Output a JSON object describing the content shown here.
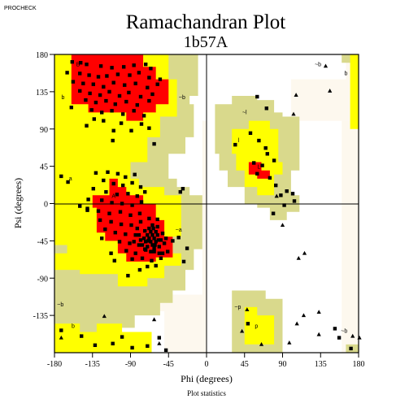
{
  "header": {
    "program": "PROCHECK",
    "title": "Ramachandran Plot",
    "subtitle": "1b57A"
  },
  "footer": {
    "caption": "Plot statistics"
  },
  "colors": {
    "core": "#ff0000",
    "allowed": "#ffff00",
    "generous": "#d9d98c",
    "disallowed_tint": "#fdf8ee",
    "background": "#ffffff",
    "residue": "#000000"
  },
  "region_labels": [
    {
      "text": "B",
      "phi": -152,
      "psi": 166
    },
    {
      "text": "b",
      "phi": -170,
      "psi": 126
    },
    {
      "text": "~b",
      "phi": -29,
      "psi": 126
    },
    {
      "text": "~b",
      "phi": 132,
      "psi": 166
    },
    {
      "text": "b",
      "phi": 165,
      "psi": 155
    },
    {
      "text": "~l",
      "phi": 45,
      "psi": 108
    },
    {
      "text": "l",
      "phi": 38,
      "psi": 74
    },
    {
      "text": "L",
      "phi": 62,
      "psi": 42
    },
    {
      "text": "a",
      "phi": -161,
      "psi": 28
    },
    {
      "text": "A",
      "phi": -110,
      "psi": 7
    },
    {
      "text": "~a",
      "phi": -33,
      "psi": -34
    },
    {
      "text": "~b",
      "phi": -173,
      "psi": -124
    },
    {
      "text": "b",
      "phi": -158,
      "psi": -150
    },
    {
      "text": "~p",
      "phi": 37,
      "psi": -127
    },
    {
      "text": "p",
      "phi": 59,
      "psi": -150
    },
    {
      "text": "~b",
      "phi": 163,
      "psi": -156
    }
  ],
  "chart_data": {
    "type": "scatter",
    "title": "Ramachandran Plot",
    "subtitle": "1b57A",
    "xlabel": "Phi (degrees)",
    "ylabel": "Psi (degrees)",
    "xlim": [
      -180,
      180
    ],
    "ylim": [
      -180,
      180
    ],
    "x_ticks": [
      -180,
      -135,
      -90,
      -45,
      0,
      45,
      90,
      135,
      180
    ],
    "y_ticks": [
      180,
      135,
      90,
      45,
      0,
      -45,
      -90,
      -135
    ],
    "grid": false,
    "series": [
      {
        "marker": "square",
        "points": [
          [
            -159,
            171
          ],
          [
            -149,
            170
          ],
          [
            -142,
            168
          ],
          [
            -125,
            166
          ],
          [
            -112,
            164
          ],
          [
            -98,
            165
          ],
          [
            -86,
            167
          ],
          [
            -72,
            168
          ],
          [
            -66,
            163
          ],
          [
            -165,
            158
          ],
          [
            -150,
            157
          ],
          [
            -139,
            155
          ],
          [
            -128,
            153
          ],
          [
            -118,
            154
          ],
          [
            -105,
            156
          ],
          [
            -91,
            155
          ],
          [
            -80,
            158
          ],
          [
            -68,
            152
          ],
          [
            -55,
            150
          ],
          [
            -158,
            147
          ],
          [
            -146,
            145
          ],
          [
            -134,
            144
          ],
          [
            -122,
            141
          ],
          [
            -110,
            146
          ],
          [
            -97,
            143
          ],
          [
            -84,
            145
          ],
          [
            -70,
            140
          ],
          [
            -58,
            144
          ],
          [
            -150,
            136
          ],
          [
            -138,
            133
          ],
          [
            -126,
            131
          ],
          [
            -115,
            135
          ],
          [
            -103,
            130
          ],
          [
            -92,
            134
          ],
          [
            -78,
            129
          ],
          [
            -64,
            132
          ],
          [
            -143,
            125
          ],
          [
            -131,
            122
          ],
          [
            -119,
            124
          ],
          [
            -108,
            120
          ],
          [
            -95,
            123
          ],
          [
            -82,
            119
          ],
          [
            -68,
            124
          ],
          [
            -136,
            113
          ],
          [
            -124,
            110
          ],
          [
            -112,
            112
          ],
          [
            -99,
            108
          ],
          [
            -86,
            112
          ],
          [
            -74,
            106
          ],
          [
            -160,
            116
          ],
          [
            -122,
            100
          ],
          [
            -133,
            102
          ],
          [
            -101,
            97
          ],
          [
            -89,
            88
          ],
          [
            -77,
            96
          ],
          [
            -110,
            88
          ],
          [
            -62,
            72
          ],
          [
            -68,
            91
          ],
          [
            -111,
            76
          ],
          [
            -142,
            94
          ],
          [
            -131,
            37
          ],
          [
            -117,
            38
          ],
          [
            -105,
            36
          ],
          [
            -96,
            32
          ],
          [
            -85,
            35
          ],
          [
            -122,
            28
          ],
          [
            -110,
            24
          ],
          [
            -99,
            22
          ],
          [
            -88,
            25
          ],
          [
            -78,
            20
          ],
          [
            -134,
            18
          ],
          [
            -119,
            14
          ],
          [
            -106,
            11
          ],
          [
            -93,
            12
          ],
          [
            -82,
            9
          ],
          [
            -73,
            14
          ],
          [
            -164,
            26
          ],
          [
            -172,
            33
          ],
          [
            -140,
            5
          ],
          [
            -124,
            4
          ],
          [
            -112,
            1
          ],
          [
            -100,
            0
          ],
          [
            -88,
            -2
          ],
          [
            -77,
            2
          ],
          [
            -141,
            -6
          ],
          [
            -128,
            -9
          ],
          [
            -115,
            -12
          ],
          [
            -102,
            -10
          ],
          [
            -90,
            -14
          ],
          [
            -79,
            -12
          ],
          [
            -126,
            -20
          ],
          [
            -113,
            -22
          ],
          [
            -101,
            -25
          ],
          [
            -89,
            -26
          ],
          [
            -78,
            -22
          ],
          [
            -68,
            -18
          ],
          [
            -120,
            -31
          ],
          [
            -108,
            -35
          ],
          [
            -96,
            -37
          ],
          [
            -84,
            -38
          ],
          [
            -73,
            -33
          ],
          [
            -63,
            -30
          ],
          [
            -58,
            -19
          ],
          [
            -57,
            -44
          ],
          [
            -103,
            -46
          ],
          [
            -91,
            -48
          ],
          [
            -80,
            -50
          ],
          [
            -69,
            -45
          ],
          [
            -61,
            -50
          ],
          [
            -95,
            -57
          ],
          [
            -84,
            -60
          ],
          [
            -73,
            -55
          ],
          [
            -62,
            -58
          ],
          [
            -52,
            -60
          ],
          [
            -76,
            -66
          ],
          [
            -65,
            -69
          ],
          [
            -54,
            -66
          ],
          [
            -88,
            -67
          ],
          [
            -70,
            -76
          ],
          [
            -66,
            -34
          ],
          [
            -64,
            -38
          ],
          [
            -62,
            -42
          ],
          [
            -68,
            -42
          ],
          [
            -70,
            -38
          ],
          [
            -66,
            -46
          ],
          [
            -60,
            -46
          ],
          [
            -72,
            -46
          ],
          [
            -64,
            -50
          ],
          [
            -58,
            -38
          ],
          [
            -68,
            -30
          ],
          [
            -74,
            -42
          ],
          [
            -56,
            -52
          ],
          [
            -62,
            -54
          ],
          [
            -70,
            -52
          ],
          [
            -76,
            -50
          ],
          [
            -54,
            -44
          ],
          [
            -60,
            -34
          ],
          [
            -66,
            -58
          ],
          [
            -72,
            -56
          ],
          [
            -78,
            -44
          ],
          [
            -80,
            -38
          ],
          [
            -58,
            -28
          ],
          [
            -52,
            -36
          ],
          [
            -50,
            -48
          ],
          [
            -48,
            -42
          ],
          [
            -64,
            -26
          ],
          [
            -82,
            -30
          ],
          [
            -86,
            -46
          ],
          [
            -56,
            -60
          ],
          [
            -40,
            -45
          ],
          [
            -33,
            -41
          ],
          [
            -46,
            -58
          ],
          [
            -113,
            -60
          ],
          [
            -124,
            -42
          ],
          [
            -141,
            -8
          ],
          [
            -150,
            -3
          ],
          [
            -31,
            14
          ],
          [
            -28,
            18
          ],
          [
            -109,
            -69
          ],
          [
            -79,
            -80
          ],
          [
            -93,
            -87
          ],
          [
            -60,
            -75
          ],
          [
            -23,
            -54
          ],
          [
            -27,
            -70
          ],
          [
            -172,
            -153
          ],
          [
            -148,
            -160
          ],
          [
            -132,
            -171
          ],
          [
            -111,
            -169
          ],
          [
            -100,
            -161
          ],
          [
            -88,
            -174
          ],
          [
            -70,
            -172
          ],
          [
            -56,
            -162
          ],
          [
            -48,
            -177
          ],
          [
            60,
            129
          ],
          [
            71,
            115
          ],
          [
            52,
            85
          ],
          [
            62,
            76
          ],
          [
            70,
            67
          ],
          [
            34,
            71
          ],
          [
            56,
            49
          ],
          [
            66,
            46
          ],
          [
            60,
            36
          ],
          [
            75,
            31
          ],
          [
            82,
            22
          ],
          [
            88,
            10
          ],
          [
            92,
            -2
          ],
          [
            95,
            15
          ],
          [
            102,
            12
          ],
          [
            104,
            3
          ],
          [
            72,
            60
          ],
          [
            80,
            52
          ],
          [
            79,
            -12
          ],
          [
            49,
            -145
          ],
          [
            152,
            -151
          ],
          [
            157,
            -162
          ],
          [
            171,
            -175
          ]
        ]
      },
      {
        "marker": "triangle",
        "points": [
          [
            -56,
            -169
          ],
          [
            -62,
            -140
          ],
          [
            -121,
            -136
          ],
          [
            -172,
            -162
          ],
          [
            48,
            -128
          ],
          [
            42,
            -154
          ],
          [
            65,
            -170
          ],
          [
            98,
            -168
          ],
          [
            107,
            -145
          ],
          [
            133,
            -158
          ],
          [
            173,
            -160
          ],
          [
            116,
            -60
          ],
          [
            115,
            -135
          ],
          [
            133,
            -131
          ],
          [
            146,
            136
          ],
          [
            103,
            108
          ],
          [
            106,
            131
          ],
          [
            141,
            166
          ],
          [
            181,
            -162
          ],
          [
            83,
            9
          ],
          [
            109,
            -66
          ],
          [
            90,
            -26
          ]
        ]
      }
    ]
  }
}
